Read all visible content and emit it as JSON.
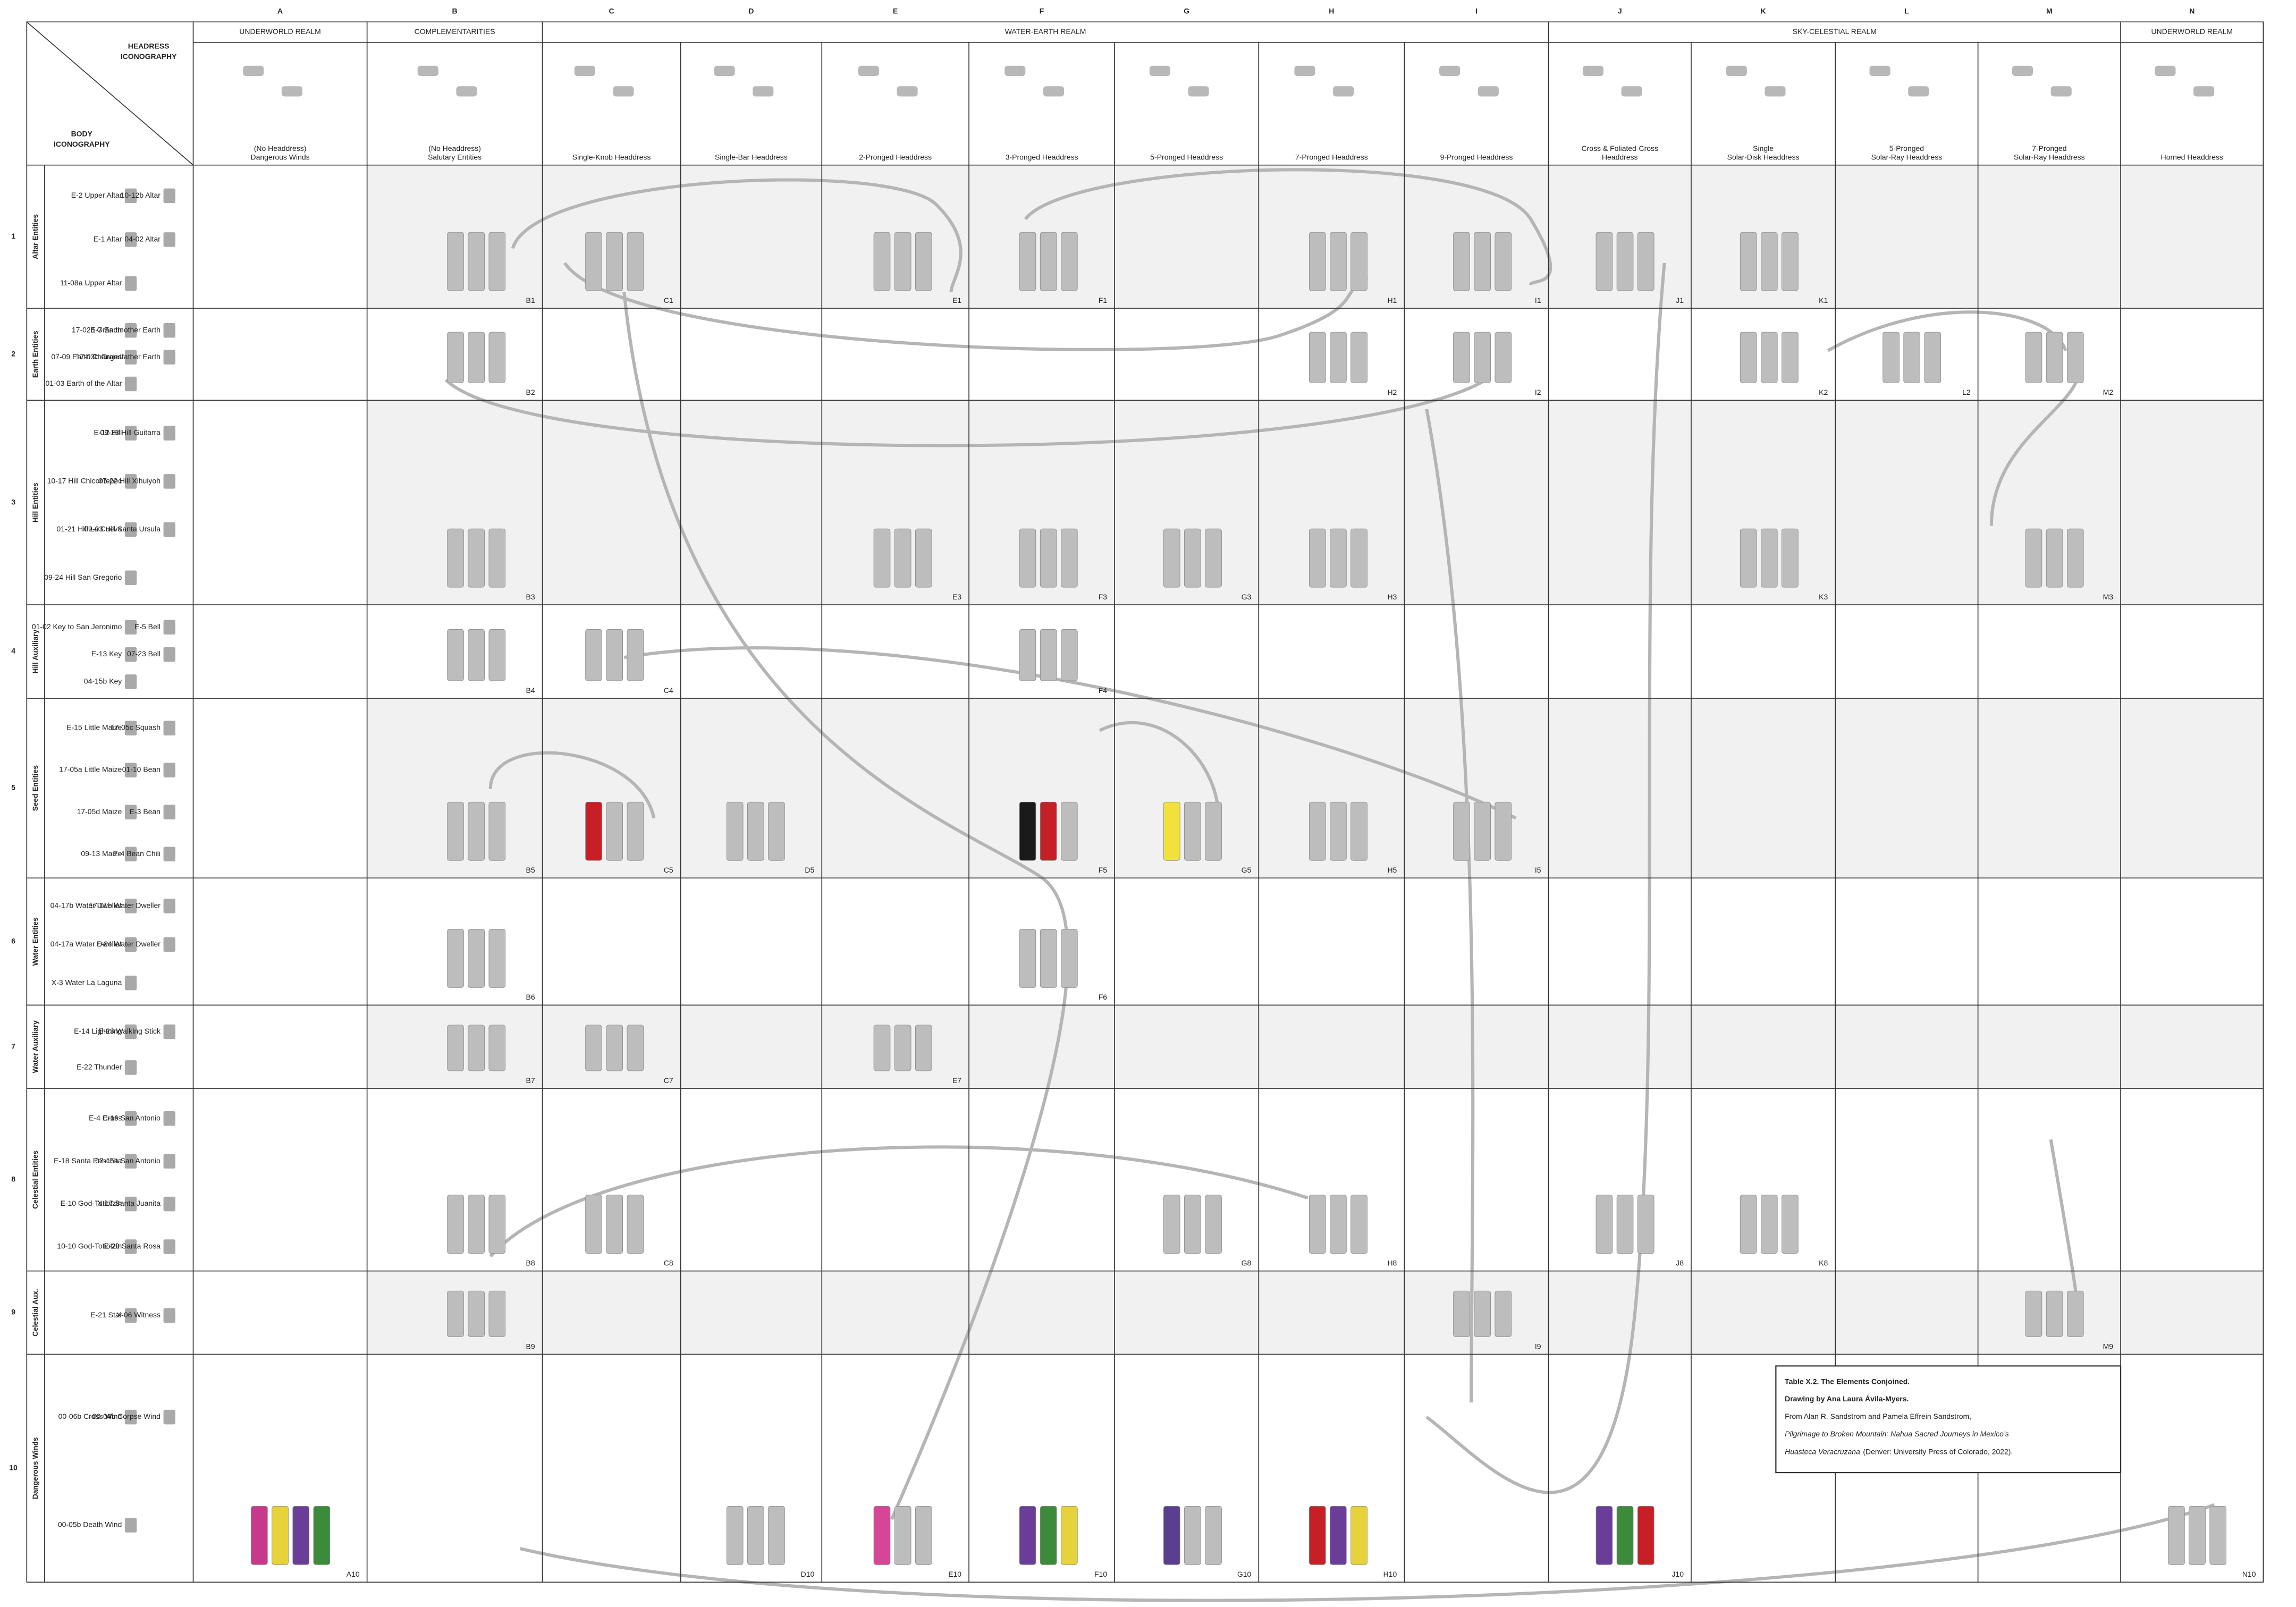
{
  "header": {
    "headdress_heading": [
      "HEADRESS",
      "ICONOGRAPHY"
    ],
    "body_heading": [
      "BODY",
      "ICONOGRAPHY"
    ]
  },
  "columns": [
    "A",
    "B",
    "C",
    "D",
    "E",
    "F",
    "G",
    "H",
    "I",
    "J",
    "K",
    "L",
    "M",
    "N"
  ],
  "realms": [
    "UNDERWORLD REALM",
    "COMPLEMENTARITIES",
    "WATER-EARTH REALM",
    "SKY-CELESTIAL REALM",
    "UNDERWORLD REALM"
  ],
  "headdresses": [
    [
      "(No Headdress)",
      "Dangerous Winds"
    ],
    [
      "(No Headdress)",
      "Salutary Entities"
    ],
    [
      "Single-Knob Headdress"
    ],
    [
      "Single-Bar Headdress"
    ],
    [
      "2-Pronged Headdress"
    ],
    [
      "3-Pronged Headdress"
    ],
    [
      "5-Pronged Headdress"
    ],
    [
      "7-Pronged Headdress"
    ],
    [
      "9-Pronged Headdress"
    ],
    [
      "Cross & Foliated-Cross",
      "Headdress"
    ],
    [
      "Single",
      "Solar-Disk Headdress"
    ],
    [
      "5-Pronged",
      "Solar-Ray Headdress"
    ],
    [
      "7-Pronged",
      "Solar-Ray Headdress"
    ],
    [
      "Horned Headdress"
    ]
  ],
  "rows": [
    {
      "number": 1,
      "name": "Altar Entities",
      "entities": [
        "E-2 Upper Altar",
        "E-1 Altar",
        "11-08a Upper Altar",
        "10-12b Altar",
        "04-02 Altar"
      ]
    },
    {
      "number": 2,
      "name": "Earth Entities",
      "entities": [
        "E-7 Earth",
        "07-09 Earth Changes",
        "01-03 Earth of the Altar",
        "17-02b Grandmother Earth",
        "17-03b Grandfather Earth"
      ]
    },
    {
      "number": 3,
      "name": "Hill Entities",
      "entities": [
        "E-12 Hill",
        "10-17 Hill Chicontepec",
        "01-21 Hill La Cueva",
        "09-24 Hill San Gregorio",
        "09-23 Hill Guitarra",
        "07-22 Hill Xihuiyoh",
        "09-03 Hill Santa Ursula"
      ]
    },
    {
      "number": 4,
      "name": "Hill Auxiliary",
      "entities": [
        "01-02 Key to San Jeronimo",
        "E-13 Key",
        "04-15b Key",
        "E-5 Bell",
        "07-23 Bell"
      ]
    },
    {
      "number": 5,
      "name": "Seed Entities",
      "entities": [
        "E-15 Little Maize",
        "17-05a Little Maize",
        "17-05d Maize",
        "09-13 Maize",
        "17-05c Squash",
        "01-10 Bean",
        "E-3 Bean",
        "E-4 Bean Chili"
      ]
    },
    {
      "number": 6,
      "name": "Water Entities",
      "entities": [
        "04-17b Water Dweller",
        "04-17a Water Dweller",
        "X-3 Water La Laguna",
        "17-01b Water Dweller",
        "E-24 Water Dweller"
      ]
    },
    {
      "number": 7,
      "name": "Water Auxiliary",
      "entities": [
        "E-14 Lightning",
        "E-22 Thunder",
        "E-23 Walking Stick"
      ]
    },
    {
      "number": 8,
      "name": "Celestial Entities",
      "entities": [
        "E-4 Cross",
        "E-18 Santa Panchita",
        "E-10 God-Totiotzin",
        "10-10 God-Totiotzin",
        "E-16 San Antonio",
        "07-15a San Antonio",
        "X-17 Santa Juanita",
        "E-20 Santa Rosa"
      ]
    },
    {
      "number": 9,
      "name": "Celestial Aux.",
      "entities": [
        "E-21 Star",
        "X-06 Witness"
      ]
    },
    {
      "number": 10,
      "name": "Dangerous Winds",
      "entities": [
        "00-06b Cross Wind",
        "00-05b Death Wind",
        "00-04b Corpse Wind"
      ]
    }
  ],
  "cells": [
    "B1",
    "C1",
    "E1",
    "F1",
    "H1",
    "I1",
    "J1",
    "K1",
    "B2",
    "H2",
    "I2",
    "K2",
    "L2",
    "M2",
    "B3",
    "E3",
    "F3",
    "G3",
    "H3",
    "K3",
    "M3",
    "B4",
    "C4",
    "F4",
    "B5",
    "C5",
    "D5",
    "F5",
    "G5",
    "H5",
    "I5",
    "B6",
    "F6",
    "B7",
    "C7",
    "E7",
    "B8",
    "C8",
    "G8",
    "H8",
    "J8",
    "K8",
    "B9",
    "I9",
    "M9",
    "A10",
    "D10",
    "E10",
    "F10",
    "G10",
    "H10",
    "J10",
    "N10"
  ],
  "caption": {
    "title": "Table X.2. The Elements Conjoined.",
    "credit": "Drawing by Ana Laura Ávila-Myers.",
    "source": "From Alan R. Sandstrom and Pamela Effrein Sandstrom,",
    "book": "Pilgrimage to Broken Mountain: Nahua Sacred Journeys in Mexico’s",
    "book_end": "Huasteca Veracruzana",
    "publication": "(Denver: University Press of Colorado, 2022)."
  }
}
